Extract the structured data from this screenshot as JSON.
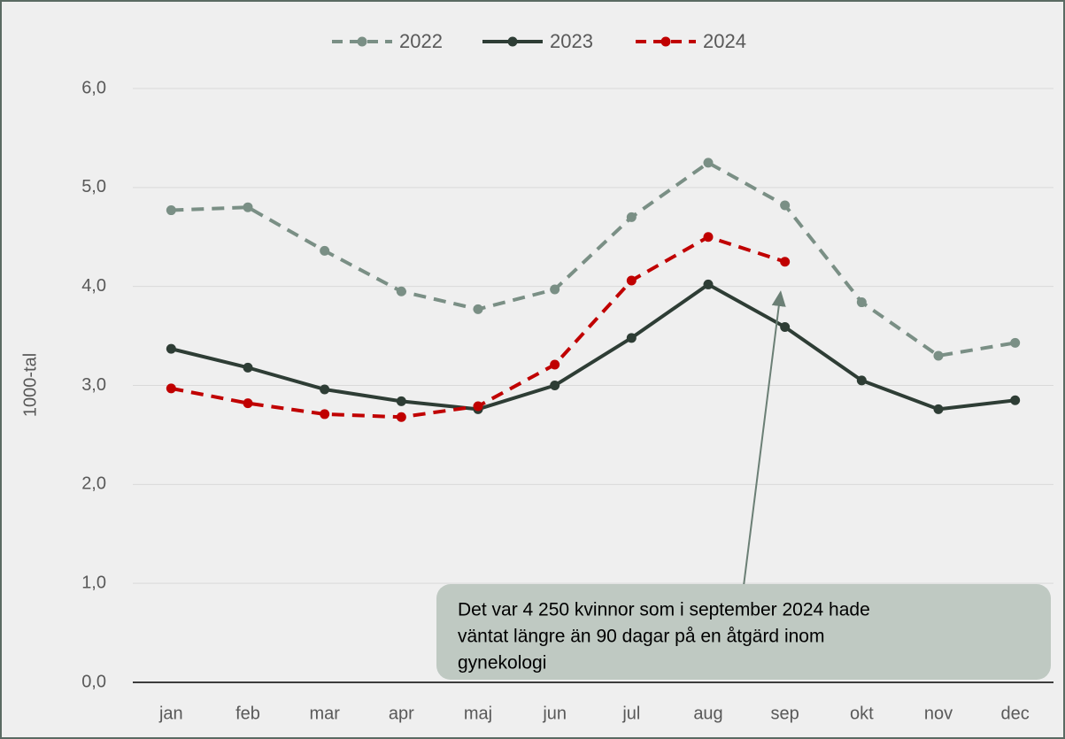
{
  "chart_data": {
    "type": "line",
    "ylabel": "1000-tal",
    "categories": [
      "jan",
      "feb",
      "mar",
      "apr",
      "maj",
      "jun",
      "jul",
      "aug",
      "sep",
      "okt",
      "nov",
      "dec"
    ],
    "series": [
      {
        "name": "2022",
        "color": "#7a8f85",
        "dash": true,
        "values": [
          4.77,
          4.8,
          4.36,
          3.95,
          3.77,
          3.97,
          4.7,
          5.25,
          4.82,
          3.84,
          3.3,
          3.43
        ]
      },
      {
        "name": "2023",
        "color": "#2e3d35",
        "dash": false,
        "values": [
          3.37,
          3.18,
          2.96,
          2.84,
          2.76,
          3.0,
          3.48,
          4.02,
          3.59,
          3.05,
          2.76,
          2.85
        ]
      },
      {
        "name": "2024",
        "color": "#c00000",
        "dash": true,
        "values": [
          2.97,
          2.82,
          2.71,
          2.68,
          2.79,
          3.21,
          4.06,
          4.5,
          4.25,
          null,
          null,
          null
        ]
      }
    ],
    "ylim": [
      0,
      6
    ],
    "yticks": [
      {
        "value": 0,
        "label": "0,0"
      },
      {
        "value": 1,
        "label": "1,0"
      },
      {
        "value": 2,
        "label": "2,0"
      },
      {
        "value": 3,
        "label": "3,0"
      },
      {
        "value": 4,
        "label": "4,0"
      },
      {
        "value": 5,
        "label": "5,0"
      },
      {
        "value": 6,
        "label": "6,0"
      }
    ],
    "grid": true,
    "legend": "top",
    "annotation": [
      "Det var 4 250 kvinnor som i september 2024 hade",
      "väntat längre än 90 dagar på en åtgärd inom",
      "gynekologi"
    ]
  }
}
